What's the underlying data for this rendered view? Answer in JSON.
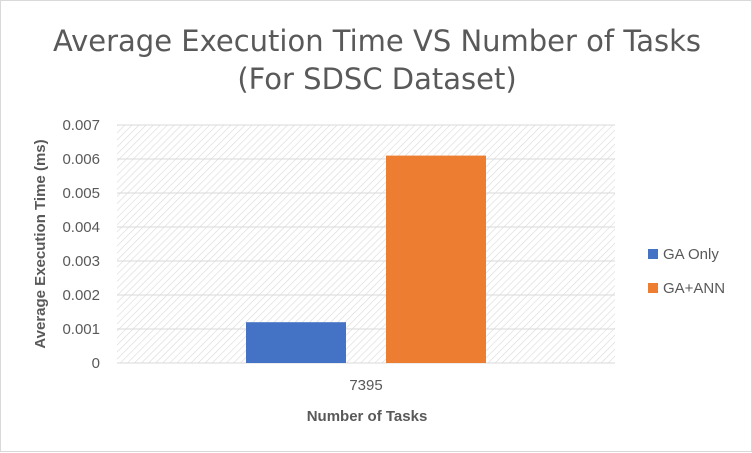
{
  "chart_data": {
    "type": "bar",
    "title_line1": "Average Execution Time VS Number of Tasks",
    "title_line2": "(For SDSC Dataset)",
    "xlabel": "Number of Tasks",
    "ylabel": "Average Execution Time  (ms)",
    "categories": [
      "7395"
    ],
    "series": [
      {
        "name": "GA Only",
        "color": "#4472c4",
        "values": [
          0.0012
        ]
      },
      {
        "name": "GA+ANN",
        "color": "#ed7d31",
        "values": [
          0.0061
        ]
      }
    ],
    "ylim": [
      0,
      0.007
    ],
    "yticks": [
      "0",
      "0.001",
      "0.002",
      "0.003",
      "0.004",
      "0.005",
      "0.006",
      "0.007"
    ],
    "grid": true,
    "legend_position": "right"
  }
}
